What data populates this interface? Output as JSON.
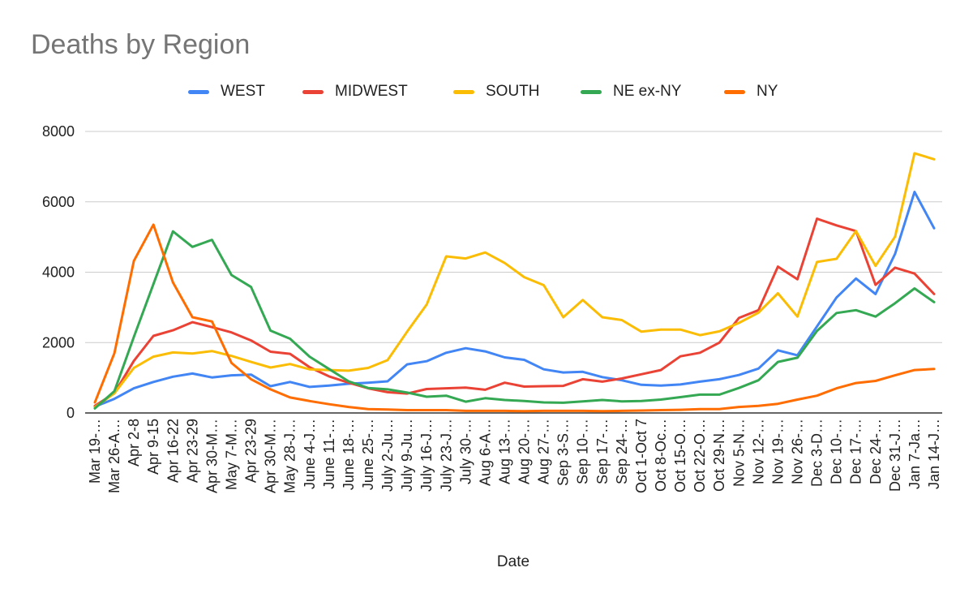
{
  "chart_data": {
    "type": "line",
    "title": "Deaths by Region",
    "xlabel": "Date",
    "ylabel": "",
    "ylim": [
      0,
      8000
    ],
    "yticks": [
      0,
      2000,
      4000,
      6000,
      8000
    ],
    "grid": true,
    "legend_position": "top",
    "categories": [
      "Mar 19-…",
      "Mar 26-A…",
      "Apr 2-8",
      "Apr 9-15",
      "Apr 16-22",
      "Apr 23-29",
      "Apr 30-M…",
      "May 7-M…",
      "Apr 23-29",
      "Apr 30-M…",
      "May 28-J…",
      "June 4-J…",
      "June 11-…",
      "June 18-…",
      "June 25-…",
      "July 2-Ju…",
      "July 9-Ju…",
      "July 16-J…",
      "July 23-J…",
      "July 30-…",
      "Aug 6-A…",
      "Aug 13-…",
      "Aug 20-…",
      "Aug 27-…",
      "Sep 3-S…",
      "Sep 10-…",
      "Sep 17-…",
      "Sep 24-…",
      "Oct 1-Oct 7",
      "Oct 8-Oc…",
      "Oct 15-O…",
      "Oct 22-O…",
      "Oct 29-N…",
      "Nov 5-N…",
      "Nov 12-…",
      "Nov 19-…",
      "Nov 26-…",
      "Dec 3-D…",
      "Dec 10-…",
      "Dec 17-…",
      "Dec 24-…",
      "Dec 31-J…",
      "Jan 7-Ja…",
      "Jan 14-J…"
    ],
    "series": [
      {
        "name": "WEST",
        "color": "#4285F4",
        "values": [
          180,
          400,
          700,
          880,
          1030,
          1120,
          1010,
          1070,
          1090,
          760,
          880,
          740,
          780,
          830,
          860,
          900,
          1380,
          1470,
          1710,
          1840,
          1750,
          1580,
          1510,
          1240,
          1150,
          1170,
          1020,
          930,
          800,
          780,
          810,
          890,
          960,
          1080,
          1260,
          1780,
          1640,
          2460,
          3280,
          3820,
          3380,
          4520,
          6280,
          5250
        ]
      },
      {
        "name": "MIDWEST",
        "color": "#EA4335",
        "values": [
          200,
          560,
          1480,
          2190,
          2350,
          2580,
          2440,
          2290,
          2060,
          1740,
          1680,
          1300,
          1040,
          860,
          700,
          590,
          550,
          680,
          700,
          720,
          660,
          860,
          750,
          760,
          770,
          960,
          890,
          980,
          1100,
          1220,
          1610,
          1710,
          2000,
          2700,
          2920,
          4160,
          3800,
          5520,
          5330,
          5170,
          3640,
          4130,
          3960,
          3380
        ]
      },
      {
        "name": "SOUTH",
        "color": "#FBBC04",
        "values": [
          160,
          560,
          1280,
          1600,
          1720,
          1690,
          1760,
          1620,
          1450,
          1290,
          1390,
          1240,
          1220,
          1200,
          1280,
          1500,
          2310,
          3080,
          4450,
          4390,
          4560,
          4260,
          3860,
          3630,
          2720,
          3210,
          2720,
          2640,
          2310,
          2370,
          2370,
          2210,
          2320,
          2560,
          2850,
          3400,
          2740,
          4290,
          4380,
          5170,
          4180,
          5010,
          7380,
          7210
        ]
      },
      {
        "name": "NE ex-NY",
        "color": "#34A853",
        "values": [
          130,
          620,
          2160,
          3660,
          5160,
          4720,
          4920,
          3920,
          3580,
          2340,
          2110,
          1600,
          1250,
          900,
          710,
          670,
          580,
          460,
          490,
          320,
          420,
          370,
          340,
          300,
          290,
          330,
          370,
          330,
          340,
          380,
          450,
          520,
          520,
          710,
          930,
          1450,
          1570,
          2330,
          2840,
          2920,
          2740,
          3120,
          3540,
          3150
        ]
      },
      {
        "name": "NY",
        "color": "#FF6D01",
        "values": [
          300,
          1700,
          4320,
          5350,
          3710,
          2720,
          2600,
          1420,
          960,
          670,
          440,
          340,
          250,
          170,
          110,
          100,
          80,
          80,
          80,
          60,
          60,
          60,
          50,
          60,
          60,
          60,
          50,
          60,
          70,
          80,
          90,
          110,
          110,
          170,
          200,
          260,
          380,
          490,
          700,
          850,
          910,
          1070,
          1220,
          1250
        ]
      }
    ]
  }
}
